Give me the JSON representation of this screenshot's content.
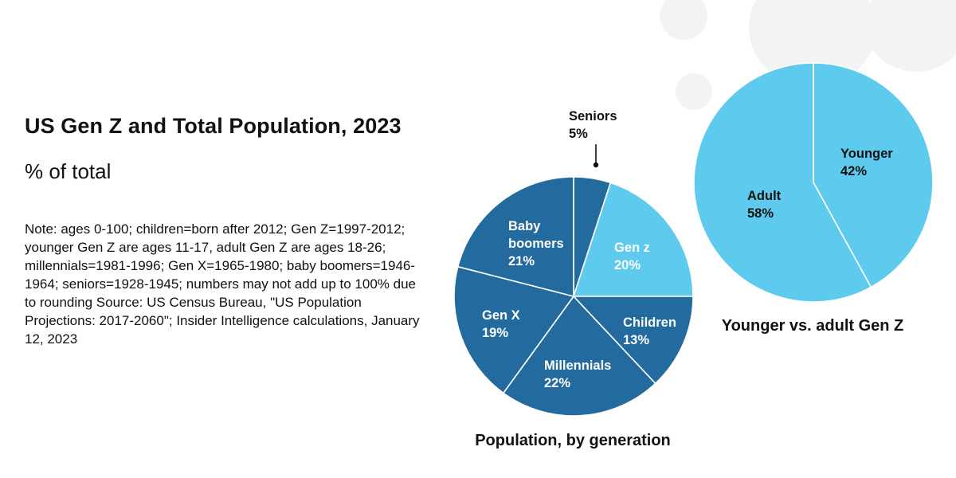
{
  "title": "US Gen Z and Total Population, 2023",
  "subtitle": "% of total",
  "note": "Note: ages 0-100; children=born after 2012; Gen Z=1997-2012; younger Gen Z are ages 11-17, adult Gen Z are ages 18-26; millennials=1981-1996; Gen X=1965-1980; baby boomers=1946-1964; seniors=1928-1945; numbers may not add up to 100% due to rounding Source: US Census Bureau, \"US Population Projections: 2017-2060\"; Insider Intelligence calculations, January 12, 2023",
  "colors": {
    "dark": "#236b9e",
    "light": "#5ecbee",
    "text_light": "#ffffff",
    "text_dark": "#111111",
    "stroke": "#ffffff"
  },
  "chart_data": [
    {
      "type": "pie",
      "title": "Population, by generation",
      "slices": [
        {
          "name": "Seniors",
          "value": 5,
          "label": "5%",
          "color": "#236b9e"
        },
        {
          "name": "Gen z",
          "value": 20,
          "label": "20%",
          "color": "#5ecbee"
        },
        {
          "name": "Children",
          "value": 13,
          "label": "13%",
          "color": "#236b9e"
        },
        {
          "name": "Millennials",
          "value": 22,
          "label": "22%",
          "color": "#236b9e"
        },
        {
          "name": "Gen X",
          "value": 19,
          "label": "19%",
          "color": "#236b9e"
        },
        {
          "name": "Baby boomers",
          "value": 21,
          "label": "21%",
          "color": "#236b9e"
        }
      ]
    },
    {
      "type": "pie",
      "title": "Younger vs. adult Gen Z",
      "slices": [
        {
          "name": "Younger",
          "value": 42,
          "label": "42%",
          "color": "#5ecbee"
        },
        {
          "name": "Adult",
          "value": 58,
          "label": "58%",
          "color": "#5ecbee"
        }
      ]
    }
  ]
}
